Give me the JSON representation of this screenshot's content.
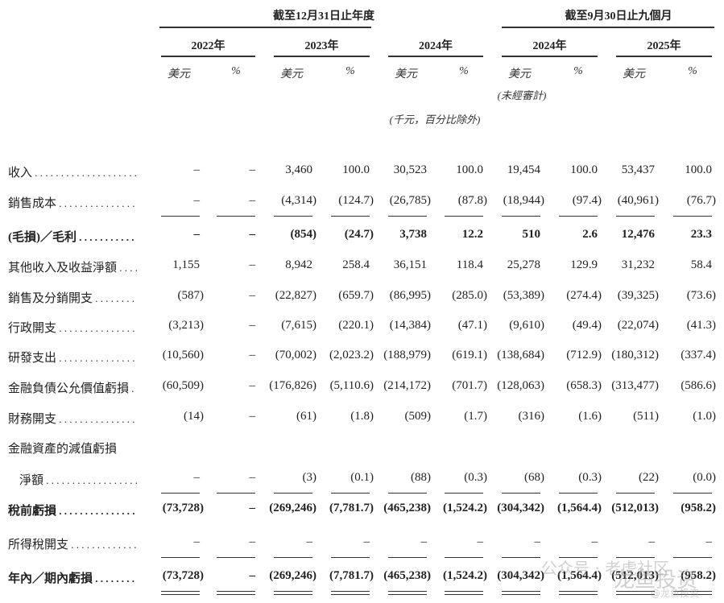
{
  "header": {
    "group_annual": "截至12月31日止年度",
    "group_nine_months": "截至9月30日止九個月",
    "years": [
      "2022年",
      "2023年",
      "2024年",
      "2024年",
      "2025年"
    ],
    "currency_label": "美元",
    "percent_label": "%",
    "unaudited_note": "(未經審計)",
    "unit_note": "(千元，百分比除外)"
  },
  "rows": [
    {
      "label": "收入",
      "bold": false,
      "underline": "none",
      "values": [
        "–",
        "–",
        "3,460",
        "100.0",
        "30,523",
        "100.0",
        "19,454",
        "100.0",
        "53,437",
        "100.0"
      ]
    },
    {
      "label": "銷售成本",
      "bold": false,
      "underline": "single",
      "values": [
        "–",
        "–",
        "(4,314)",
        "(124.7)",
        "(26,785)",
        "(87.8)",
        "(18,944)",
        "(97.4)",
        "(40,961)",
        "(76.7)"
      ]
    },
    {
      "label": "(毛損)／毛利",
      "bold": true,
      "underline": "none",
      "values": [
        "–",
        "–",
        "(854)",
        "(24.7)",
        "3,738",
        "12.2",
        "510",
        "2.6",
        "12,476",
        "23.3"
      ]
    },
    {
      "label": "其他收入及收益淨額",
      "bold": false,
      "underline": "none",
      "values": [
        "1,155",
        "–",
        "8,942",
        "258.4",
        "36,151",
        "118.4",
        "25,278",
        "129.9",
        "31,232",
        "58.4"
      ]
    },
    {
      "label": "銷售及分銷開支",
      "bold": false,
      "underline": "none",
      "values": [
        "(587)",
        "–",
        "(22,827)",
        "(659.7)",
        "(86,995)",
        "(285.0)",
        "(53,389)",
        "(274.4)",
        "(39,325)",
        "(73.6)"
      ]
    },
    {
      "label": "行政開支",
      "bold": false,
      "underline": "none",
      "values": [
        "(3,213)",
        "–",
        "(7,615)",
        "(220.1)",
        "(14,384)",
        "(47.1)",
        "(9,610)",
        "(49.4)",
        "(22,074)",
        "(41.3)"
      ]
    },
    {
      "label": "研發支出",
      "bold": false,
      "underline": "none",
      "values": [
        "(10,560)",
        "–",
        "(70,002)",
        "(2,023.2)",
        "(188,979)",
        "(619.1)",
        "(138,684)",
        "(712.9)",
        "(180,312)",
        "(337.4)"
      ]
    },
    {
      "label": "金融負債公允價值虧損",
      "bold": false,
      "underline": "none",
      "values": [
        "(60,509)",
        "–",
        "(176,826)",
        "(5,110.6)",
        "(214,172)",
        "(701.7)",
        "(128,063)",
        "(658.3)",
        "(313,477)",
        "(586.6)"
      ]
    },
    {
      "label": "財務開支",
      "bold": false,
      "underline": "none",
      "values": [
        "(14)",
        "–",
        "(61)",
        "(1.8)",
        "(509)",
        "(1.7)",
        "(316)",
        "(1.6)",
        "(511)",
        "(1.0)"
      ]
    },
    {
      "label": "金融資產的減值虧損",
      "bold": false,
      "underline": "none",
      "nodots": true,
      "values": []
    },
    {
      "label": "淨額",
      "bold": false,
      "underline": "single",
      "indent": true,
      "values": [
        "–",
        "–",
        "(3)",
        "(0.1)",
        "(88)",
        "(0.3)",
        "(68)",
        "(0.3)",
        "(22)",
        "(0.0)"
      ]
    },
    {
      "label": "稅前虧損",
      "bold": true,
      "underline": "none",
      "values": [
        "(73,728)",
        "–",
        "(269,246)",
        "(7,781.7)",
        "(465,238)",
        "(1,524.2)",
        "(304,342)",
        "(1,564.4)",
        "(512,013)",
        "(958.2)"
      ]
    },
    {
      "label": "所得稅開支",
      "bold": false,
      "underline": "single",
      "values": [
        "–",
        "–",
        "–",
        "–",
        "–",
        "–",
        "–",
        "–",
        "–",
        "–"
      ]
    },
    {
      "label": "年內／期內虧損",
      "bold": true,
      "underline": "double",
      "values": [
        "(73,728)",
        "–",
        "(269,246)",
        "(7,781.7)",
        "(465,238)",
        "(1,524.2)",
        "(304,342)",
        "(1,564.4)",
        "(512,013)",
        "(958.2)"
      ]
    }
  ],
  "watermark": {
    "line1": "公众号 · 老虎社区",
    "line2": "龙鱼投资",
    "line3": "@龙鱼投资"
  }
}
